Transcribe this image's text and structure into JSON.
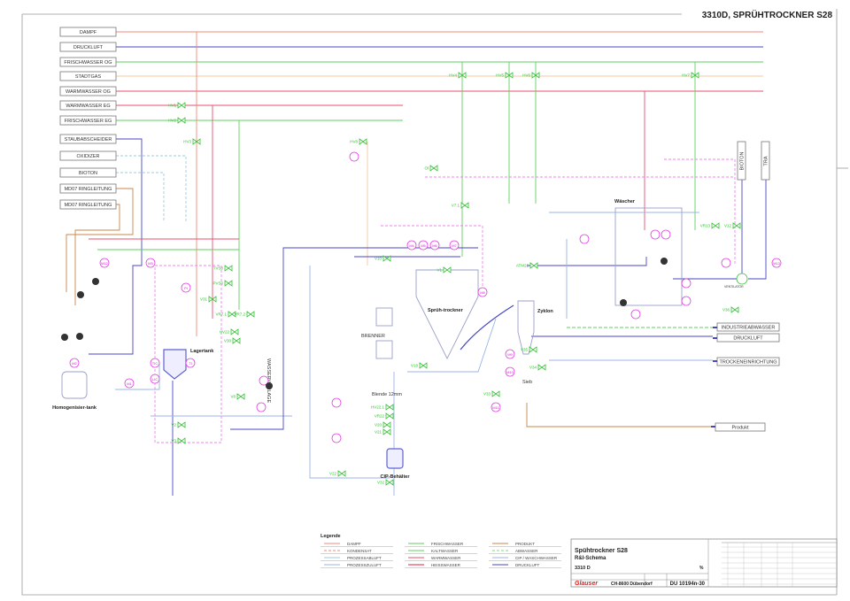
{
  "header": {
    "title": "3310D, SPRÜHTROCKNER S28"
  },
  "colors": {
    "dampf": "#f08a78",
    "druckluft": "#4646c8",
    "frischwasser": "#5fd05f",
    "stadtgas": "#f3c9a0",
    "warmwasser": "#e8506e",
    "produkt": "#c8864a",
    "abwasser": "#7ee07e",
    "cip": "#9db4e8",
    "instrument": "#e040e0",
    "valve": "#30c030"
  },
  "supply_lines": [
    {
      "label": "DAMPF",
      "color": "#f08a78"
    },
    {
      "label": "DRUCKLUFT",
      "color": "#4646c8"
    },
    {
      "label": "FRISCHWASSER OG",
      "color": "#5fd05f"
    },
    {
      "label": "STADTGAS",
      "color": "#f3c9a0"
    },
    {
      "label": "WARMWASSER OG",
      "color": "#e8506e"
    },
    {
      "label": "WARMWASSER EG",
      "color": "#e8506e"
    },
    {
      "label": "FRISCHWASSER EG",
      "color": "#5fd05f"
    }
  ],
  "side_sources": [
    "STAUBABSCHEIDER",
    "OXIDIZER",
    "BIOTON",
    "MD07 RINGLEITUNG",
    "MD07 RINGLEITUNG"
  ],
  "outlets": [
    "INDUSTRIEABWASSER",
    "DRUCKLUFT",
    "TROCKENEINRICHTUNG",
    "Produkt"
  ],
  "vertical_outlets": [
    "BIOTON",
    "TRA"
  ],
  "vessels": {
    "homogenisier": "Homogenisier-tank",
    "lagertank": "Lagertank",
    "spruehtrockner": "Sprüh-trockner",
    "zyklon": "Zyklon",
    "cip": "CIP-Behälter",
    "waescher": "Wäscher",
    "sieb": "Sieb",
    "blende": "Blende 12mm",
    "brenner": "BRENNER",
    "wasservorlage": "WASSERVORLAGE",
    "ventilator": "VENTILATOR"
  },
  "valves": [
    "HV1",
    "HV2",
    "HV3",
    "HV4",
    "HV5",
    "HV6",
    "HV7",
    "HV8",
    "V1",
    "V2",
    "V3",
    "V8",
    "V18",
    "V20",
    "V21",
    "V22",
    "V30",
    "V31",
    "V32",
    "V33",
    "V34",
    "V35",
    "V36",
    "TVS0",
    "PVS0",
    "VR7.1",
    "VR7.2",
    "HV22.1",
    "VR22",
    "HV22",
    "V7.1",
    "VR13",
    "V12",
    "V10",
    "ATM22",
    "Ol"
  ],
  "instruments": [
    "M12",
    "M2",
    "TIC",
    "LIC",
    "PI",
    "TI",
    "M1",
    "M3",
    "M4",
    "M5",
    "M6",
    "M7",
    "M8",
    "M9",
    "M10",
    "M11",
    "M13"
  ],
  "legend": {
    "title": "Legende",
    "items": [
      {
        "label": "DAMPF",
        "color": "#f08a78",
        "dash": false
      },
      {
        "label": "KONDENSAT",
        "color": "#f08a78",
        "dash": true
      },
      {
        "label": "PROZESSABLUFT",
        "color": "#9ecbe0",
        "dash": false
      },
      {
        "label": "PROZESSZULUFT",
        "color": "#9db4e8",
        "dash": false
      },
      {
        "label": "FRISCHWASSER",
        "color": "#5fd05f",
        "dash": false
      },
      {
        "label": "KALTWASSER",
        "color": "#5fd05f",
        "dash": false
      },
      {
        "label": "WARMWASSER",
        "color": "#e8506e",
        "dash": false
      },
      {
        "label": "HEISSWASSER",
        "color": "#e02040",
        "dash": false
      },
      {
        "label": "PRODUKT",
        "color": "#c8864a",
        "dash": false
      },
      {
        "label": "ABWASSER",
        "color": "#7ee07e",
        "dash": true
      },
      {
        "label": "CIP / WASCHWASSER",
        "color": "#9db4e8",
        "dash": false
      },
      {
        "label": "DRUCKLUFT",
        "color": "#4646c8",
        "dash": false
      }
    ]
  },
  "title_block": {
    "title": "Spühtrockner S28",
    "subtitle": "R&I-Schema",
    "number": "3310 D",
    "scale": "%",
    "address": "CH-8600 Dübendorf",
    "drawing_no": "DU 10194n-30",
    "logo_text": "Glauser"
  }
}
